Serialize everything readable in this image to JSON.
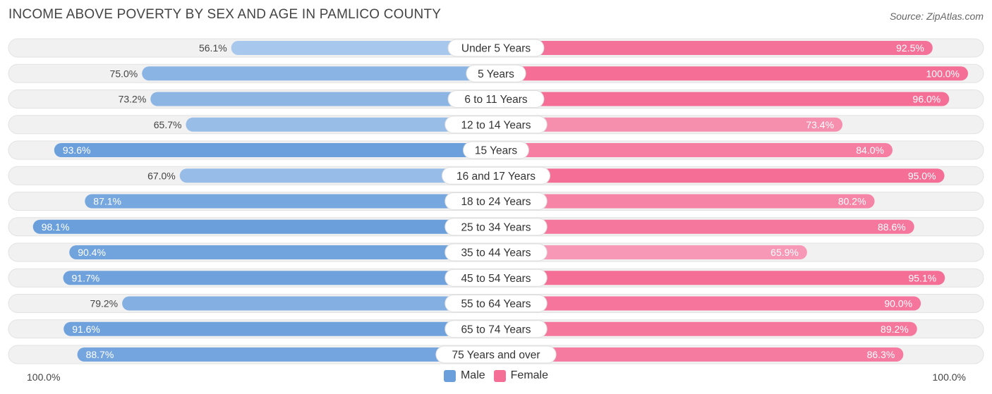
{
  "header": {
    "title": "INCOME ABOVE POVERTY BY SEX AND AGE IN PAMLICO COUNTY",
    "source": "Source: ZipAtlas.com"
  },
  "colors": {
    "male_strong": "#6a9fdb",
    "male_light": "#a9c8ec",
    "female_strong": "#f46e96",
    "female_light": "#f8a9c2",
    "track": "#f1f1f1"
  },
  "chart_data": {
    "type": "bar",
    "orientation": "horizontal-diverging",
    "title": "INCOME ABOVE POVERTY BY SEX AND AGE IN PAMLICO COUNTY",
    "categories": [
      "Under 5 Years",
      "5 Years",
      "6 to 11 Years",
      "12 to 14 Years",
      "15 Years",
      "16 and 17 Years",
      "18 to 24 Years",
      "25 to 34 Years",
      "35 to 44 Years",
      "45 to 54 Years",
      "55 to 64 Years",
      "65 to 74 Years",
      "75 Years and over"
    ],
    "series": [
      {
        "name": "Male",
        "values": [
          56.1,
          75.0,
          73.2,
          65.7,
          93.6,
          67.0,
          87.1,
          98.1,
          90.4,
          91.7,
          79.2,
          91.6,
          88.7
        ]
      },
      {
        "name": "Female",
        "values": [
          92.5,
          100.0,
          96.0,
          73.4,
          84.0,
          95.0,
          80.2,
          88.6,
          65.9,
          95.1,
          90.0,
          89.2,
          86.3
        ]
      }
    ],
    "value_labels": {
      "Male": [
        "56.1%",
        "75.0%",
        "73.2%",
        "65.7%",
        "93.6%",
        "67.0%",
        "87.1%",
        "98.1%",
        "90.4%",
        "91.7%",
        "79.2%",
        "91.6%",
        "88.7%"
      ],
      "Female": [
        "92.5%",
        "100.0%",
        "96.0%",
        "73.4%",
        "84.0%",
        "95.0%",
        "80.2%",
        "88.6%",
        "65.9%",
        "95.1%",
        "90.0%",
        "89.2%",
        "86.3%"
      ]
    },
    "xlim": [
      0,
      100
    ],
    "axis_left_label": "100.0%",
    "axis_right_label": "100.0%",
    "legend_position": "bottom-center",
    "grid": false
  }
}
